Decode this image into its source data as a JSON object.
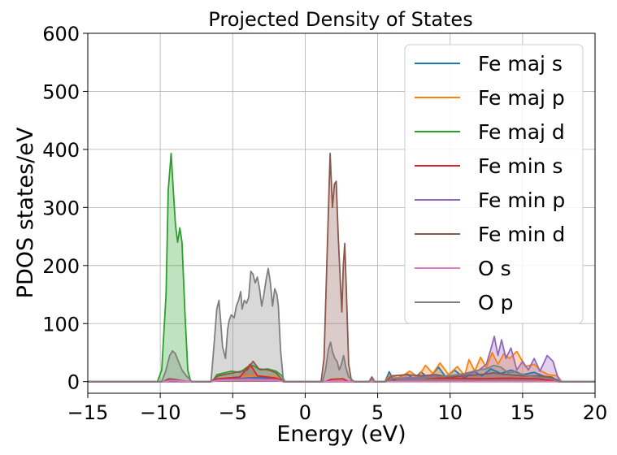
{
  "chart_data": {
    "type": "area",
    "title": "Projected Density of States",
    "xlabel": "Energy (eV)",
    "ylabel": "PDOS states/eV",
    "xlim": [
      -15,
      20
    ],
    "ylim": [
      -20,
      600
    ],
    "xticks": [
      -15,
      -10,
      -5,
      0,
      5,
      10,
      15,
      20
    ],
    "xtick_labels": [
      "−15",
      "−10",
      "−5",
      "0",
      "5",
      "10",
      "15",
      "20"
    ],
    "yticks": [
      0,
      100,
      200,
      300,
      400,
      500,
      600
    ],
    "ytick_labels": [
      "0",
      "100",
      "200",
      "300",
      "400",
      "500",
      "600"
    ],
    "grid": true,
    "legend_position": "top-right",
    "series": [
      {
        "name": "Fe maj s",
        "color": "#1f77b4",
        "points": [
          [
            -15,
            0
          ],
          [
            -6.5,
            0
          ],
          [
            -6,
            3
          ],
          [
            -5,
            5
          ],
          [
            -3.5,
            7
          ],
          [
            -2,
            6
          ],
          [
            -1.5,
            0
          ],
          [
            5.5,
            0
          ],
          [
            5.8,
            17
          ],
          [
            6.1,
            2
          ],
          [
            7,
            14
          ],
          [
            7.5,
            4
          ],
          [
            8,
            17
          ],
          [
            8.5,
            5
          ],
          [
            9.2,
            25
          ],
          [
            9.7,
            8
          ],
          [
            10.3,
            20
          ],
          [
            11,
            6
          ],
          [
            11.6,
            18
          ],
          [
            12.2,
            10
          ],
          [
            12.8,
            22
          ],
          [
            13.5,
            14
          ],
          [
            14.2,
            20
          ],
          [
            15,
            12
          ],
          [
            15.8,
            16
          ],
          [
            16.6,
            8
          ],
          [
            17.3,
            4
          ],
          [
            17.6,
            0
          ],
          [
            20,
            0
          ]
        ]
      },
      {
        "name": "Fe maj p",
        "color": "#ff7f0e",
        "points": [
          [
            -15,
            0
          ],
          [
            -6.5,
            0
          ],
          [
            -6,
            5
          ],
          [
            -5,
            7
          ],
          [
            -3.5,
            10
          ],
          [
            -2,
            8
          ],
          [
            -1.5,
            0
          ],
          [
            5.5,
            0
          ],
          [
            5.8,
            10
          ],
          [
            6.5,
            6
          ],
          [
            7.2,
            18
          ],
          [
            7.8,
            8
          ],
          [
            8.3,
            28
          ],
          [
            8.8,
            14
          ],
          [
            9.3,
            32
          ],
          [
            9.9,
            12
          ],
          [
            10.5,
            26
          ],
          [
            11,
            10
          ],
          [
            11.3,
            38
          ],
          [
            11.7,
            18
          ],
          [
            12.1,
            42
          ],
          [
            12.5,
            24
          ],
          [
            12.9,
            50
          ],
          [
            13.3,
            30
          ],
          [
            13.7,
            48
          ],
          [
            14.1,
            40
          ],
          [
            14.6,
            52
          ],
          [
            15.2,
            26
          ],
          [
            15.8,
            30
          ],
          [
            16.3,
            18
          ],
          [
            16.8,
            12
          ],
          [
            17.4,
            10
          ],
          [
            17.7,
            0
          ],
          [
            20,
            0
          ]
        ]
      },
      {
        "name": "Fe maj d",
        "color": "#2ca02c",
        "points": [
          [
            -15,
            0
          ],
          [
            -10.2,
            0
          ],
          [
            -9.9,
            20
          ],
          [
            -9.6,
            150
          ],
          [
            -9.45,
            330
          ],
          [
            -9.25,
            393
          ],
          [
            -9.1,
            330
          ],
          [
            -8.95,
            270
          ],
          [
            -8.8,
            240
          ],
          [
            -8.65,
            265
          ],
          [
            -8.5,
            240
          ],
          [
            -8.3,
            120
          ],
          [
            -8.1,
            20
          ],
          [
            -7.9,
            0
          ],
          [
            -6.4,
            0
          ],
          [
            -6.1,
            12
          ],
          [
            -5.6,
            15
          ],
          [
            -5.1,
            18
          ],
          [
            -4.5,
            16
          ],
          [
            -4,
            25
          ],
          [
            -3.6,
            28
          ],
          [
            -3.1,
            20
          ],
          [
            -2.6,
            22
          ],
          [
            -2,
            18
          ],
          [
            -1.6,
            10
          ],
          [
            -1.4,
            0
          ],
          [
            20,
            0
          ]
        ]
      },
      {
        "name": "Fe min s",
        "color": "#d62728",
        "points": [
          [
            -15,
            0
          ],
          [
            -9.8,
            0
          ],
          [
            -9.4,
            3
          ],
          [
            -8.6,
            2
          ],
          [
            -8,
            0
          ],
          [
            -6.5,
            0
          ],
          [
            -6,
            5
          ],
          [
            -4.5,
            8
          ],
          [
            -3.8,
            30
          ],
          [
            -3.3,
            10
          ],
          [
            -2,
            6
          ],
          [
            -1.5,
            0
          ],
          [
            1.4,
            0
          ],
          [
            1.8,
            4
          ],
          [
            2.6,
            5
          ],
          [
            3,
            0
          ],
          [
            5.5,
            0
          ],
          [
            6,
            4
          ],
          [
            8,
            6
          ],
          [
            10,
            6
          ],
          [
            12,
            5
          ],
          [
            14,
            6
          ],
          [
            16,
            5
          ],
          [
            17.5,
            0
          ],
          [
            20,
            0
          ]
        ]
      },
      {
        "name": "Fe min p",
        "color": "#9467bd",
        "points": [
          [
            -15,
            0
          ],
          [
            -6.5,
            0
          ],
          [
            -6,
            3
          ],
          [
            -4,
            5
          ],
          [
            -2,
            4
          ],
          [
            -1.5,
            0
          ],
          [
            5.5,
            0
          ],
          [
            6,
            5
          ],
          [
            8,
            8
          ],
          [
            10,
            10
          ],
          [
            11.5,
            14
          ],
          [
            12,
            20
          ],
          [
            12.5,
            30
          ],
          [
            12.8,
            55
          ],
          [
            13.05,
            78
          ],
          [
            13.3,
            45
          ],
          [
            13.55,
            72
          ],
          [
            13.85,
            40
          ],
          [
            14.2,
            58
          ],
          [
            14.6,
            20
          ],
          [
            15,
            35
          ],
          [
            15.4,
            20
          ],
          [
            15.8,
            40
          ],
          [
            16.2,
            18
          ],
          [
            16.7,
            45
          ],
          [
            17.1,
            35
          ],
          [
            17.4,
            10
          ],
          [
            17.6,
            0
          ],
          [
            20,
            0
          ]
        ]
      },
      {
        "name": "Fe min d",
        "color": "#8c564b",
        "points": [
          [
            -15,
            0
          ],
          [
            -9.8,
            0
          ],
          [
            -9.4,
            5
          ],
          [
            -9,
            4
          ],
          [
            -8.2,
            0
          ],
          [
            -6.5,
            0
          ],
          [
            -6,
            10
          ],
          [
            -5,
            15
          ],
          [
            -4,
            20
          ],
          [
            -3.6,
            35
          ],
          [
            -3.2,
            22
          ],
          [
            -2.5,
            20
          ],
          [
            -2,
            15
          ],
          [
            -1.5,
            0
          ],
          [
            1.1,
            0
          ],
          [
            1.3,
            40
          ],
          [
            1.55,
            250
          ],
          [
            1.72,
            393
          ],
          [
            1.88,
            300
          ],
          [
            2.02,
            340
          ],
          [
            2.14,
            345
          ],
          [
            2.28,
            250
          ],
          [
            2.43,
            170
          ],
          [
            2.53,
            120
          ],
          [
            2.63,
            200
          ],
          [
            2.73,
            238
          ],
          [
            2.85,
            150
          ],
          [
            3,
            30
          ],
          [
            3.2,
            0
          ],
          [
            4.4,
            0
          ],
          [
            4.6,
            8
          ],
          [
            4.8,
            0
          ],
          [
            5.5,
            0
          ],
          [
            6,
            10
          ],
          [
            7,
            12
          ],
          [
            8,
            10
          ],
          [
            9,
            12
          ],
          [
            10,
            8
          ],
          [
            11,
            10
          ],
          [
            12,
            12
          ],
          [
            13,
            15
          ],
          [
            14,
            12
          ],
          [
            15,
            10
          ],
          [
            16,
            10
          ],
          [
            17,
            8
          ],
          [
            17.5,
            0
          ],
          [
            20,
            0
          ]
        ]
      },
      {
        "name": "O s",
        "color": "#e377c2",
        "points": [
          [
            -15,
            0
          ],
          [
            -9.6,
            0
          ],
          [
            -9.3,
            2
          ],
          [
            -8.5,
            1
          ],
          [
            -8,
            0
          ],
          [
            -6.5,
            0
          ],
          [
            -6,
            2
          ],
          [
            -4,
            3
          ],
          [
            -2,
            2
          ],
          [
            -1.5,
            0
          ],
          [
            20,
            0
          ]
        ]
      },
      {
        "name": "O p",
        "color": "#7f7f7f",
        "points": [
          [
            -15,
            0
          ],
          [
            -9.9,
            0
          ],
          [
            -9.6,
            20
          ],
          [
            -9.35,
            45
          ],
          [
            -9.15,
            53
          ],
          [
            -8.95,
            48
          ],
          [
            -8.75,
            35
          ],
          [
            -8.5,
            20
          ],
          [
            -8.2,
            10
          ],
          [
            -7.8,
            0
          ],
          [
            -6.5,
            0
          ],
          [
            -6.3,
            60
          ],
          [
            -6.1,
            125
          ],
          [
            -5.95,
            140
          ],
          [
            -5.85,
            110
          ],
          [
            -5.7,
            60
          ],
          [
            -5.5,
            40
          ],
          [
            -5.35,
            90
          ],
          [
            -5.25,
            105
          ],
          [
            -5.1,
            115
          ],
          [
            -4.9,
            110
          ],
          [
            -4.75,
            130
          ],
          [
            -4.6,
            140
          ],
          [
            -4.45,
            155
          ],
          [
            -4.35,
            125
          ],
          [
            -4.2,
            140
          ],
          [
            -4.05,
            135
          ],
          [
            -3.9,
            145
          ],
          [
            -3.75,
            190
          ],
          [
            -3.6,
            185
          ],
          [
            -3.45,
            170
          ],
          [
            -3.3,
            180
          ],
          [
            -3.15,
            160
          ],
          [
            -3,
            130
          ],
          [
            -2.85,
            150
          ],
          [
            -2.7,
            175
          ],
          [
            -2.55,
            195
          ],
          [
            -2.4,
            170
          ],
          [
            -2.25,
            130
          ],
          [
            -2.1,
            160
          ],
          [
            -1.95,
            150
          ],
          [
            -1.85,
            130
          ],
          [
            -1.7,
            55
          ],
          [
            -1.5,
            0
          ],
          [
            1.2,
            0
          ],
          [
            1.4,
            20
          ],
          [
            1.6,
            55
          ],
          [
            1.75,
            68
          ],
          [
            1.9,
            50
          ],
          [
            2.05,
            40
          ],
          [
            2.2,
            35
          ],
          [
            2.35,
            20
          ],
          [
            2.5,
            30
          ],
          [
            2.65,
            45
          ],
          [
            2.8,
            25
          ],
          [
            3,
            8
          ],
          [
            3.4,
            0
          ],
          [
            4.4,
            0
          ],
          [
            4.6,
            5
          ],
          [
            4.8,
            0
          ],
          [
            5.5,
            0
          ],
          [
            6,
            5
          ],
          [
            7,
            4
          ],
          [
            8,
            6
          ],
          [
            9,
            8
          ],
          [
            10,
            10
          ],
          [
            11,
            14
          ],
          [
            12,
            20
          ],
          [
            12.5,
            22
          ],
          [
            13,
            28
          ],
          [
            13.5,
            25
          ],
          [
            14,
            15
          ],
          [
            14.5,
            18
          ],
          [
            15,
            12
          ],
          [
            16,
            8
          ],
          [
            17,
            5
          ],
          [
            17.5,
            0
          ],
          [
            20,
            0
          ]
        ]
      }
    ]
  }
}
